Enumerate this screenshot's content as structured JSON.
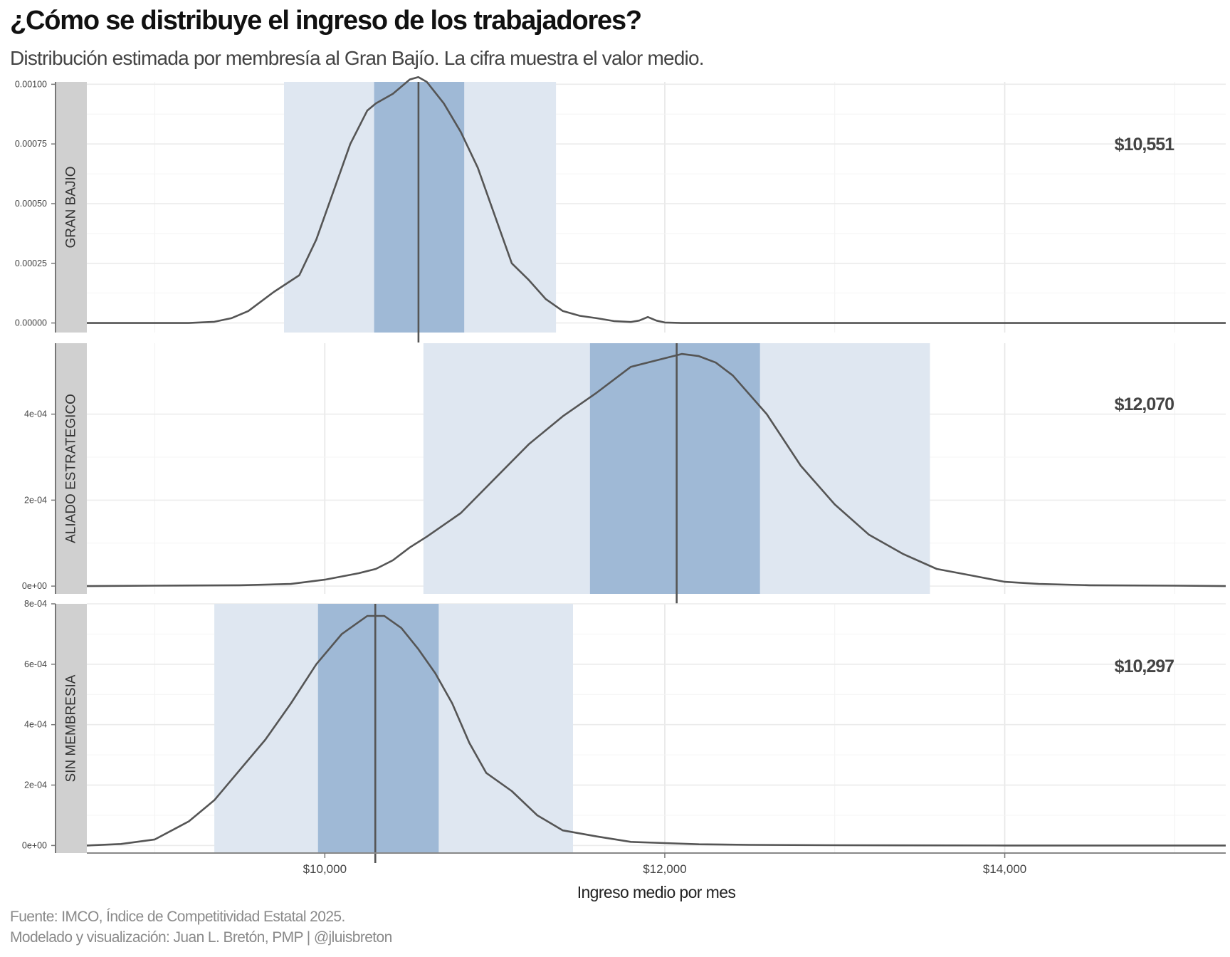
{
  "header": {
    "title": "¿Cómo se distribuye el ingreso de los trabajadores?",
    "subtitle": "Distribución estimada por membresía al Gran Bajío. La cifra muestra el valor medio."
  },
  "footer": {
    "source": "Fuente: IMCO, Índice de Competitividad Estatal 2025.",
    "credit": "Modelado y visualización: Juan L. Bretón, PMP | @jluisbreton"
  },
  "colors": {
    "outer_band": "#dfe7f1",
    "inner_band": "#9fb9d6",
    "curve": "#555555",
    "strip": "#d0d0d0",
    "grid": "#ebebeb"
  },
  "chart_data": {
    "type": "area",
    "xlabel": "Ingreso medio por mes",
    "xlim": [
      8600,
      15300
    ],
    "x_ticks": [
      10000,
      12000,
      14000
    ],
    "x_tick_labels": [
      "$10,000",
      "$12,000",
      "$14,000"
    ],
    "grid": true,
    "panels": [
      {
        "name": "GRAN BAJIO",
        "mean": 10551,
        "mean_label": "$10,551",
        "outer_interval": [
          9760,
          11360
        ],
        "inner_interval": [
          10290,
          10820
        ],
        "ylim": [
          -4e-05,
          0.00101
        ],
        "y_ticks": [
          0,
          0.00025,
          0.0005,
          0.00075,
          0.001
        ],
        "y_tick_labels": [
          "0.00000",
          "0.00025",
          "0.00050",
          "0.00075",
          "0.00100"
        ],
        "x": [
          8600,
          9000,
          9200,
          9350,
          9450,
          9550,
          9700,
          9850,
          9950,
          10050,
          10150,
          10250,
          10300,
          10400,
          10500,
          10550,
          10600,
          10700,
          10800,
          10900,
          11000,
          11100,
          11200,
          11300,
          11400,
          11500,
          11600,
          11700,
          11800,
          11850,
          11900,
          11950,
          12000,
          12100,
          12500,
          13500,
          15300
        ],
        "y": [
          0,
          0,
          0,
          5e-06,
          2e-05,
          5e-05,
          0.00013,
          0.0002,
          0.00035,
          0.00055,
          0.00075,
          0.00089,
          0.00092,
          0.00096,
          0.00102,
          0.00103,
          0.00101,
          0.00092,
          0.0008,
          0.00065,
          0.00045,
          0.00025,
          0.00018,
          0.0001,
          5e-05,
          3e-05,
          2e-05,
          8e-06,
          4e-06,
          1e-05,
          2.5e-05,
          1e-05,
          2e-06,
          0,
          0,
          0,
          0
        ]
      },
      {
        "name": "ALIADO ESTRATEGICO",
        "mean": 12070,
        "mean_label": "$12,070",
        "outer_interval": [
          10580,
          13560
        ],
        "inner_interval": [
          11560,
          12560
        ],
        "ylim": [
          -1.8e-05,
          0.000565
        ],
        "y_ticks": [
          0,
          0.0002,
          0.0004
        ],
        "y_tick_labels": [
          "0e+00",
          "2e-04",
          "4e-04"
        ],
        "x": [
          8600,
          9000,
          9500,
          9800,
          10000,
          10200,
          10300,
          10400,
          10500,
          10600,
          10800,
          11000,
          11200,
          11400,
          11600,
          11800,
          12000,
          12100,
          12200,
          12300,
          12400,
          12600,
          12800,
          13000,
          13200,
          13400,
          13600,
          13800,
          14000,
          14200,
          14500,
          15000,
          15300
        ],
        "y": [
          0,
          1e-06,
          2e-06,
          5e-06,
          1.5e-05,
          3e-05,
          4e-05,
          6e-05,
          9e-05,
          0.000115,
          0.00017,
          0.00025,
          0.00033,
          0.000395,
          0.00045,
          0.00051,
          0.00053,
          0.00054,
          0.000535,
          0.00052,
          0.00049,
          0.0004,
          0.00028,
          0.00019,
          0.00012,
          7.5e-05,
          4e-05,
          2.5e-05,
          1e-05,
          5e-06,
          2e-06,
          1e-06,
          0
        ]
      },
      {
        "name": "SIN MEMBRESIA",
        "mean": 10297,
        "mean_label": "$10,297",
        "outer_interval": [
          9350,
          11460
        ],
        "inner_interval": [
          9960,
          10670
        ],
        "ylim": [
          -2.5e-05,
          0.0008
        ],
        "y_ticks": [
          0,
          0.0002,
          0.0004,
          0.0006,
          0.0008
        ],
        "y_tick_labels": [
          "0e+00",
          "2e-04",
          "4e-04",
          "6e-04",
          "8e-04"
        ],
        "x": [
          8600,
          8800,
          9000,
          9200,
          9350,
          9500,
          9650,
          9800,
          9950,
          10100,
          10250,
          10350,
          10450,
          10550,
          10650,
          10750,
          10850,
          10950,
          11100,
          11250,
          11400,
          11600,
          11800,
          12000,
          12200,
          12500,
          13000,
          14000,
          15300
        ],
        "y": [
          0,
          5e-06,
          2e-05,
          8e-05,
          0.00015,
          0.00025,
          0.00035,
          0.00047,
          0.0006,
          0.0007,
          0.00076,
          0.00076,
          0.00072,
          0.00065,
          0.00057,
          0.00047,
          0.00034,
          0.00024,
          0.00018,
          0.0001,
          5e-05,
          3e-05,
          1.2e-05,
          8e-06,
          4e-06,
          2e-06,
          1e-06,
          0,
          0
        ]
      }
    ]
  }
}
